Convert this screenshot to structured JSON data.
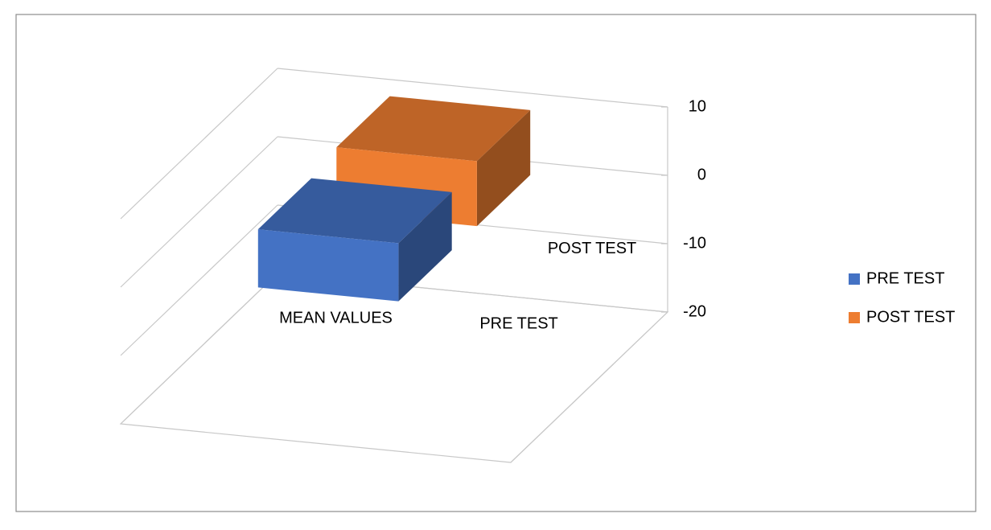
{
  "chart_data": {
    "type": "bar3d",
    "categories": [
      "MEAN VALUES"
    ],
    "series": [
      {
        "name": "PRE TEST",
        "color": "#4472c4",
        "values": [
          8.5
        ]
      },
      {
        "name": "POST TEST",
        "color": "#ed7d31",
        "values": [
          9.5
        ]
      }
    ],
    "ylim": [
      -20,
      10
    ],
    "yticks": [
      -20,
      -10,
      0,
      10
    ],
    "grid": true,
    "legend": "right"
  }
}
